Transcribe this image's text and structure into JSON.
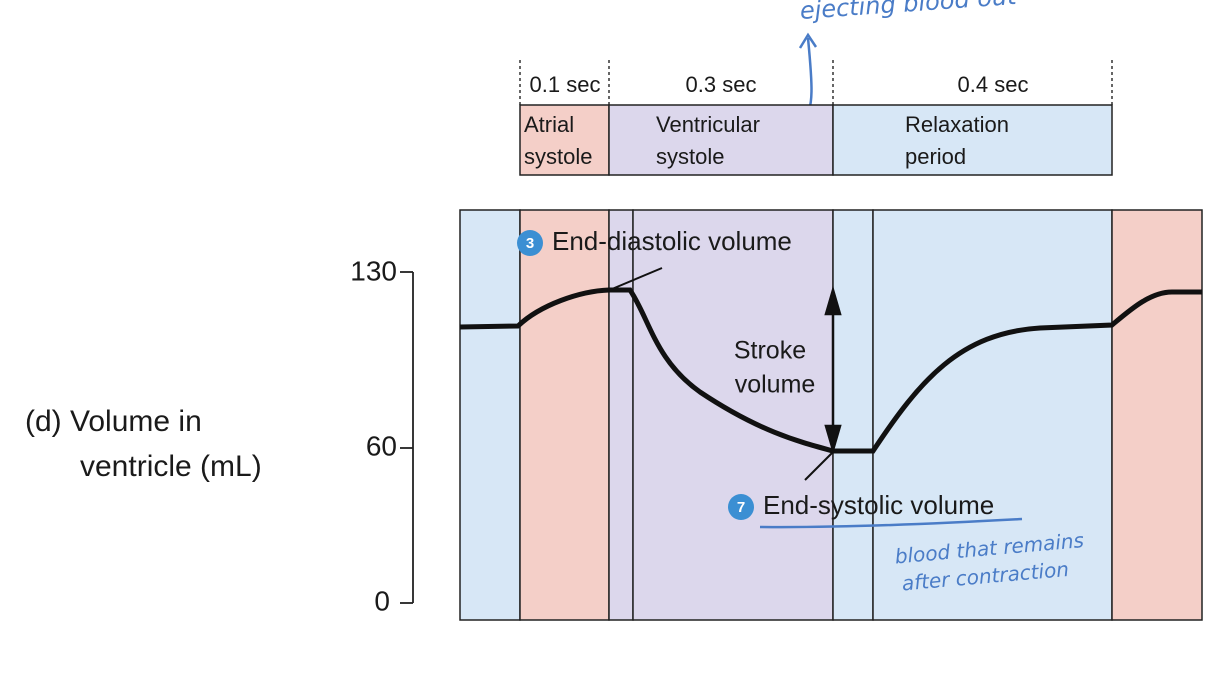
{
  "handwritten_note_top": "ejecting blood out",
  "handwritten_note_bottom": [
    "blood that remains",
    "after contraction"
  ],
  "phases": [
    {
      "duration": "0.1 sec",
      "label": [
        "Atrial",
        "systole"
      ]
    },
    {
      "duration": "0.3 sec",
      "label": [
        "Ventricular",
        "systole"
      ]
    },
    {
      "duration": "0.4 sec",
      "label": [
        "Relaxation",
        "period"
      ]
    }
  ],
  "axis": {
    "label": [
      "(d) Volume in",
      "ventricle (mL)"
    ],
    "ticks": [
      "130",
      "60",
      "0"
    ]
  },
  "callouts": [
    {
      "number": "3",
      "label": "End-diastolic volume"
    },
    {
      "number": "7",
      "label": "End-systolic volume"
    }
  ],
  "stroke_volume": [
    "Stroke",
    "volume"
  ]
}
